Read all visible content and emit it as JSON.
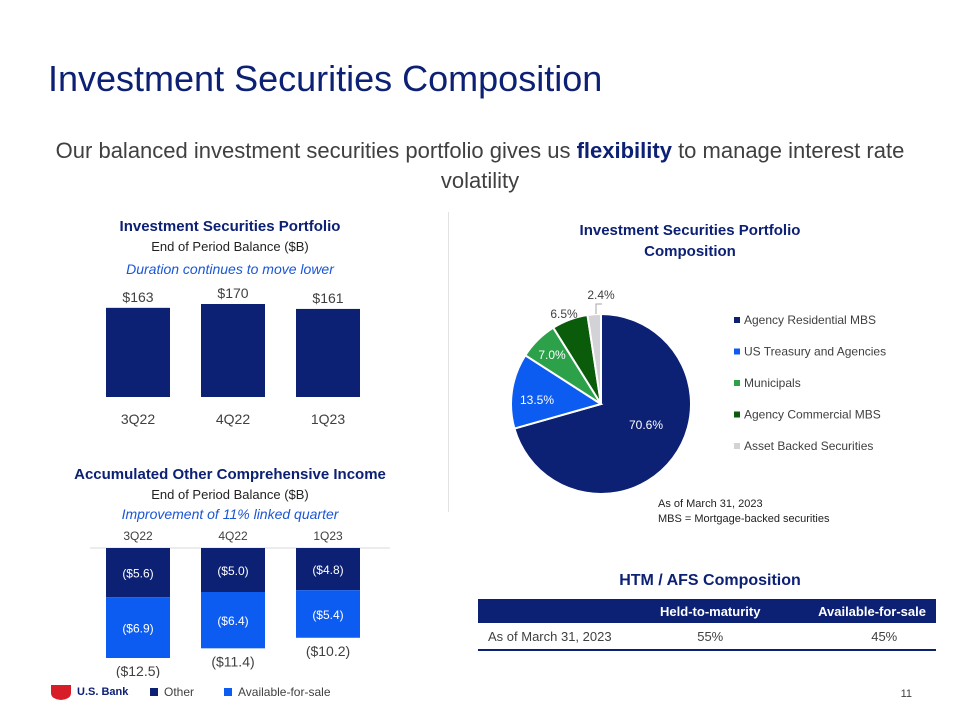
{
  "slide": {
    "title": "Investment Securities Composition",
    "subtitle_pre": "Our balanced investment securities portfolio gives us ",
    "subtitle_bold": "flexibility",
    "subtitle_post": " to manage interest rate volatility",
    "page_number": "11",
    "brand_name": "U.S. Bank"
  },
  "colors": {
    "navy": "#0c2074",
    "blue": "#0d5cf2",
    "green": "#2ca14a",
    "dark_green": "#0a5c0a",
    "gray": "#d3d3d7"
  },
  "portfolio": {
    "title": "Investment Securities Portfolio",
    "subtitle": "End of Period Balance ($B)",
    "note": "Duration continues to move lower"
  },
  "aoci": {
    "title": "Accumulated Other Comprehensive Income",
    "subtitle": "End of Period Balance ($B)",
    "note": "Improvement of 11% linked quarter"
  },
  "pie": {
    "title_line1": "Investment Securities Portfolio",
    "title_line2": "Composition",
    "footnote_line1": "As of March 31, 2023",
    "footnote_line2": "MBS = Mortgage-backed securities"
  },
  "htm_afs": {
    "title": "HTM / AFS Composition",
    "headers": [
      "",
      "Held-to-maturity",
      "Available-for-sale"
    ],
    "row": [
      "As of March 31, 2023",
      "55%",
      "45%"
    ]
  },
  "chart_data": [
    {
      "id": "portfolio",
      "type": "bar",
      "title": "Investment Securities Portfolio",
      "subtitle": "End of Period Balance ($B)",
      "categories": [
        "3Q22",
        "4Q22",
        "1Q23"
      ],
      "values": [
        163,
        170,
        161
      ],
      "labels": [
        "$163",
        "$170",
        "$161"
      ],
      "ylim": [
        0,
        170
      ]
    },
    {
      "id": "aoci",
      "type": "bar",
      "stacked": true,
      "title": "Accumulated Other Comprehensive Income",
      "categories": [
        "3Q22",
        "4Q22",
        "1Q23"
      ],
      "series": [
        {
          "name": "Other",
          "values": [
            -5.6,
            -5.0,
            -4.8
          ],
          "labels": [
            "($5.6)",
            "($5.0)",
            "($4.8)"
          ],
          "color": "#0c2074"
        },
        {
          "name": "Available-for-sale",
          "values": [
            -6.9,
            -6.4,
            -5.4
          ],
          "labels": [
            "($6.9)",
            "($6.4)",
            "($5.4)"
          ],
          "color": "#0d5cf2"
        }
      ],
      "totals": [
        -12.5,
        -11.4,
        -10.2
      ],
      "total_labels": [
        "($12.5)",
        "($11.4)",
        "($10.2)"
      ],
      "ylim": [
        -12.5,
        0
      ]
    },
    {
      "id": "composition",
      "type": "pie",
      "title": "Investment Securities Portfolio Composition",
      "categories": [
        "Agency Residential MBS",
        "US Treasury and Agencies",
        "Municipals",
        "Agency Commercial MBS",
        "Asset Backed Securities"
      ],
      "values": [
        70.6,
        13.5,
        7.0,
        6.5,
        2.4
      ],
      "labels": [
        "70.6%",
        "13.5%",
        "7.0%",
        "6.5%",
        "2.4%"
      ],
      "colors": [
        "#0c2074",
        "#0d5cf2",
        "#2ca14a",
        "#0a5c0a",
        "#d3d3d7"
      ],
      "legend": "right"
    }
  ]
}
